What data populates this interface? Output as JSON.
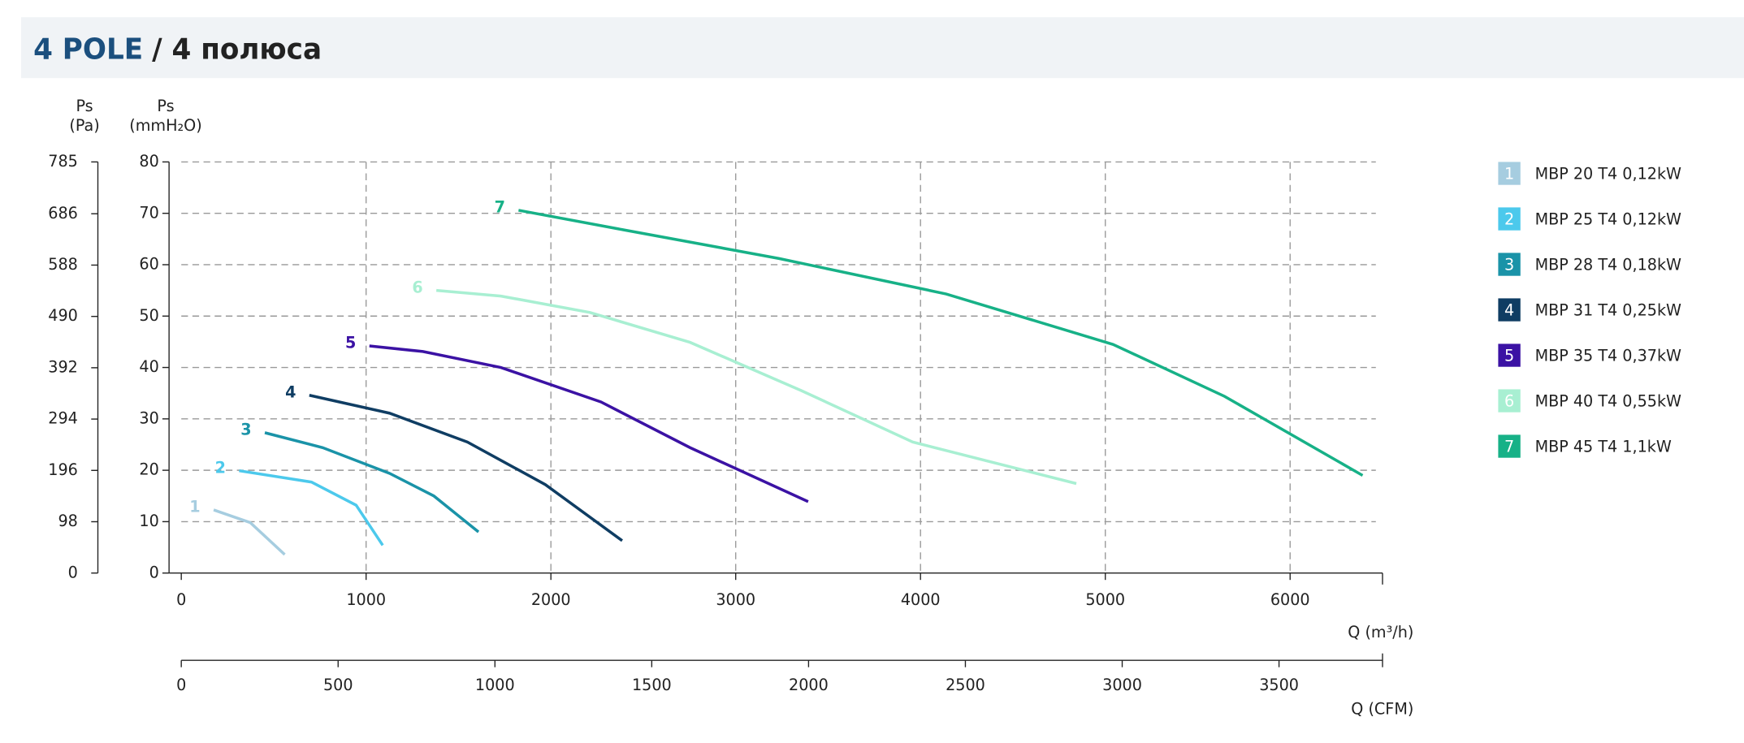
{
  "chart_data": {
    "type": "line",
    "title": "4 POLE",
    "subtitle": "/ 4 полюса",
    "y_label_top": "Ps",
    "y_label": "(mmH₂O)",
    "y2_label_top": "Ps",
    "y2_label": "(Pa)",
    "x_label": "Q (m³/h)",
    "x2_label": "Q (CFM)",
    "xlim": [
      0,
      6500
    ],
    "xticks": [
      0,
      1000,
      2000,
      3000,
      4000,
      5000,
      6000
    ],
    "x2lim": [
      0,
      3830
    ],
    "x2ticks": [
      0,
      500,
      1000,
      1500,
      2000,
      2500,
      3000,
      3500
    ],
    "ylim": [
      0,
      80
    ],
    "yticks": [
      0,
      10,
      20,
      30,
      40,
      50,
      60,
      70,
      80
    ],
    "y2lim": [
      0,
      785
    ],
    "y2ticks": [
      0,
      98,
      196,
      294,
      392,
      490,
      588,
      686,
      785
    ],
    "grid": true,
    "legend": "right",
    "series": [
      {
        "name": "MBP 20 T4 0,12kW",
        "label": "1",
        "color": "#a6cde0",
        "x": [
          175,
          373,
          560
        ],
        "values": [
          12.3,
          9.8,
          3.6
        ]
      },
      {
        "name": "MBP 25 T4 0,12kW",
        "label": "2",
        "color": "#4cc9ec",
        "x": [
          313,
          705,
          946,
          1090
        ],
        "values": [
          19.9,
          17.7,
          13.2,
          5.4
        ]
      },
      {
        "name": "MBP 28 T4 0,18kW",
        "label": "3",
        "color": "#1a93a8",
        "x": [
          452,
          765,
          1127,
          1367,
          1608
        ],
        "values": [
          27.3,
          24.4,
          19.4,
          15,
          8
        ]
      },
      {
        "name": "MBP 31 T4 0,25kW",
        "label": "4",
        "color": "#0f3d63",
        "x": [
          693,
          1127,
          1548,
          1970,
          2386
        ],
        "values": [
          34.6,
          31.1,
          25.5,
          17.2,
          6.3
        ]
      },
      {
        "name": "MBP 35 T4 0,37kW",
        "label": "5",
        "color": "#3b12a4",
        "x": [
          1018,
          1307,
          1729,
          2271,
          2753,
          3392
        ],
        "values": [
          44.2,
          43.1,
          40,
          33.3,
          24.4,
          13.9
        ]
      },
      {
        "name": "MBP 40 T4 0,55kW",
        "label": "6",
        "color": "#a8efd2",
        "x": [
          1380,
          1729,
          2211,
          2753,
          3355,
          3958,
          4843
        ],
        "values": [
          55,
          53.9,
          50.7,
          44.9,
          35.5,
          25.5,
          17.4
        ]
      },
      {
        "name": "MBP 45 T4 1,1kW",
        "label": "7",
        "color": "#17b187",
        "x": [
          1825,
          2392,
          3235,
          4139,
          5042,
          5645,
          6392
        ],
        "values": [
          70.6,
          66.8,
          61.2,
          54.3,
          44.5,
          34.4,
          19
        ]
      }
    ]
  }
}
